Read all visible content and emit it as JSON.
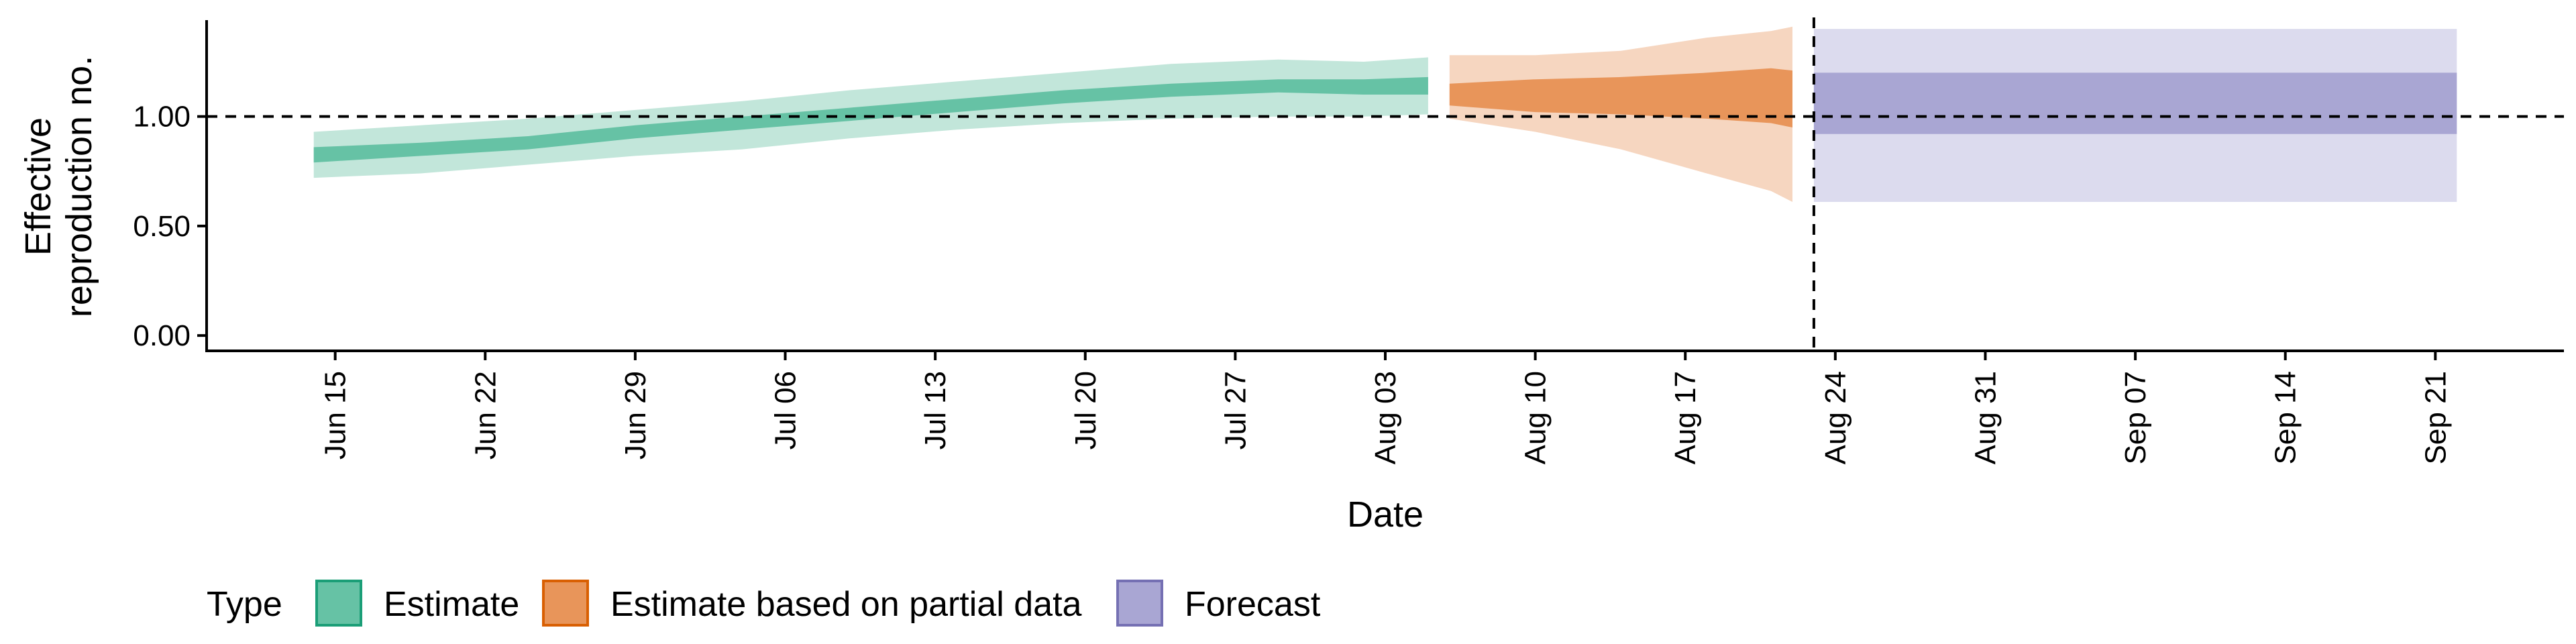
{
  "chart_data": {
    "type": "area",
    "xlabel": "Date",
    "ylabel_lines": [
      "Effective",
      "reproduction no."
    ],
    "x_range": [
      "2020-06-09",
      "2020-09-27"
    ],
    "ylim": [
      -0.07,
      1.44
    ],
    "y_ticks": [
      {
        "value": 0.0,
        "label": "0.00"
      },
      {
        "value": 0.5,
        "label": "0.50"
      },
      {
        "value": 1.0,
        "label": "1.00"
      }
    ],
    "x_ticks": [
      {
        "date": "2020-06-15",
        "label": "Jun 15"
      },
      {
        "date": "2020-06-22",
        "label": "Jun 22"
      },
      {
        "date": "2020-06-29",
        "label": "Jun 29"
      },
      {
        "date": "2020-07-06",
        "label": "Jul 06"
      },
      {
        "date": "2020-07-13",
        "label": "Jul 13"
      },
      {
        "date": "2020-07-20",
        "label": "Jul 20"
      },
      {
        "date": "2020-07-27",
        "label": "Jul 27"
      },
      {
        "date": "2020-08-03",
        "label": "Aug 03"
      },
      {
        "date": "2020-08-10",
        "label": "Aug 10"
      },
      {
        "date": "2020-08-17",
        "label": "Aug 17"
      },
      {
        "date": "2020-08-24",
        "label": "Aug 24"
      },
      {
        "date": "2020-08-31",
        "label": "Aug 31"
      },
      {
        "date": "2020-09-07",
        "label": "Sep 07"
      },
      {
        "date": "2020-09-14",
        "label": "Sep 14"
      },
      {
        "date": "2020-09-21",
        "label": "Sep 21"
      }
    ],
    "reference_line_y": 1.0,
    "forecast_start_date": "2020-08-23",
    "grid": false,
    "legend": {
      "position": "bottom-left",
      "title": "Type",
      "entries": [
        {
          "label": "Estimate",
          "fill": "#66c2a5",
          "border": "#1b9e77"
        },
        {
          "label": "Estimate based on partial data",
          "fill": "#e8955a",
          "border": "#d95f02"
        },
        {
          "label": "Forecast",
          "fill": "#a9a6d3",
          "border": "#7570b3"
        }
      ]
    },
    "series": [
      {
        "name": "Estimate",
        "outer_color": "#c2e6da",
        "inner_color": "#66c2a5",
        "points": [
          {
            "date": "2020-06-14",
            "lo90": 0.72,
            "lo50": 0.79,
            "hi50": 0.86,
            "hi90": 0.93
          },
          {
            "date": "2020-06-19",
            "lo90": 0.74,
            "lo50": 0.82,
            "hi50": 0.88,
            "hi90": 0.96
          },
          {
            "date": "2020-06-24",
            "lo90": 0.78,
            "lo50": 0.85,
            "hi50": 0.91,
            "hi90": 0.99
          },
          {
            "date": "2020-06-29",
            "lo90": 0.82,
            "lo50": 0.9,
            "hi50": 0.96,
            "hi90": 1.03
          },
          {
            "date": "2020-07-04",
            "lo90": 0.85,
            "lo50": 0.94,
            "hi50": 1.0,
            "hi90": 1.07
          },
          {
            "date": "2020-07-09",
            "lo90": 0.9,
            "lo50": 0.98,
            "hi50": 1.04,
            "hi90": 1.12
          },
          {
            "date": "2020-07-14",
            "lo90": 0.94,
            "lo50": 1.02,
            "hi50": 1.08,
            "hi90": 1.16
          },
          {
            "date": "2020-07-19",
            "lo90": 0.97,
            "lo50": 1.06,
            "hi50": 1.12,
            "hi90": 1.2
          },
          {
            "date": "2020-07-24",
            "lo90": 0.99,
            "lo50": 1.09,
            "hi50": 1.15,
            "hi90": 1.24
          },
          {
            "date": "2020-07-29",
            "lo90": 1.0,
            "lo50": 1.11,
            "hi50": 1.17,
            "hi90": 1.26
          },
          {
            "date": "2020-08-02",
            "lo90": 1.0,
            "lo50": 1.1,
            "hi50": 1.17,
            "hi90": 1.25
          },
          {
            "date": "2020-08-05",
            "lo90": 1.01,
            "lo50": 1.1,
            "hi50": 1.18,
            "hi90": 1.27
          }
        ]
      },
      {
        "name": "Estimate based on partial data",
        "outer_color": "#f6d6c0",
        "inner_color": "#e8955a",
        "points": [
          {
            "date": "2020-08-06",
            "lo90": 0.99,
            "lo50": 1.05,
            "hi50": 1.15,
            "hi90": 1.28
          },
          {
            "date": "2020-08-10",
            "lo90": 0.93,
            "lo50": 1.02,
            "hi50": 1.17,
            "hi90": 1.28
          },
          {
            "date": "2020-08-14",
            "lo90": 0.85,
            "lo50": 1.01,
            "hi50": 1.18,
            "hi90": 1.3
          },
          {
            "date": "2020-08-18",
            "lo90": 0.74,
            "lo50": 0.99,
            "hi50": 1.2,
            "hi90": 1.36
          },
          {
            "date": "2020-08-21",
            "lo90": 0.66,
            "lo50": 0.97,
            "hi50": 1.22,
            "hi90": 1.39
          },
          {
            "date": "2020-08-22",
            "lo90": 0.61,
            "lo50": 0.95,
            "hi50": 1.21,
            "hi90": 1.41
          }
        ]
      },
      {
        "name": "Forecast",
        "outer_color": "#dcdbee",
        "inner_color": "#a9a6d3",
        "points": [
          {
            "date": "2020-08-23",
            "lo90": 0.61,
            "lo50": 0.92,
            "hi50": 1.2,
            "hi90": 1.4
          },
          {
            "date": "2020-09-22",
            "lo90": 0.61,
            "lo50": 0.92,
            "hi50": 1.2,
            "hi90": 1.4
          }
        ]
      }
    ]
  }
}
